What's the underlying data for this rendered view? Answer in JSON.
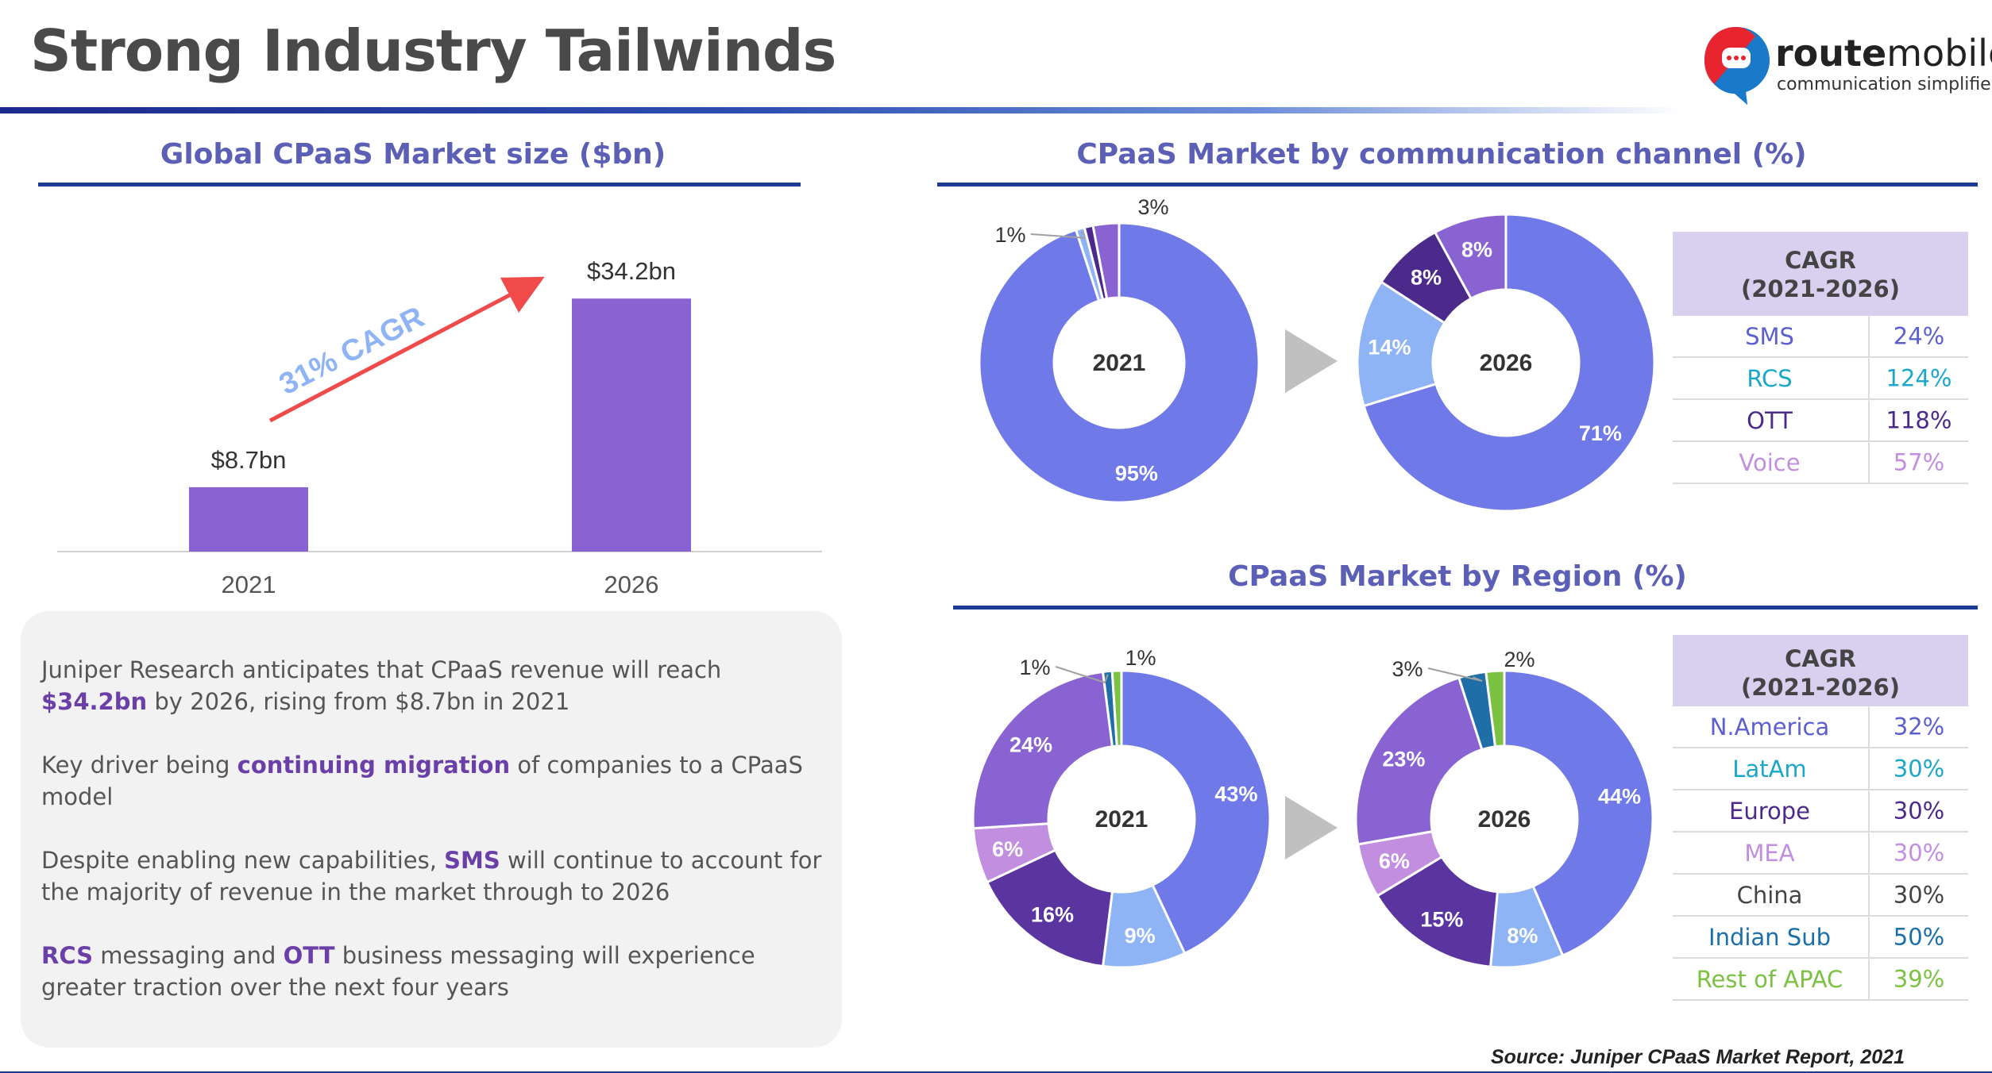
{
  "page_title": "Strong Industry Tailwinds",
  "logo": {
    "brand_bold": "route",
    "brand_regular": "mobile",
    "tagline": "communication simplified"
  },
  "source": "Source:  Juniper CPaaS Market Report, 2021",
  "market_size": {
    "section_title": "Global CPaaS Market size ($bn)",
    "cagr_label": "31% CAGR",
    "labels": [
      "$8.7bn",
      "$34.2bn"
    ]
  },
  "channel": {
    "section_title": "CPaaS Market by communication channel (%)",
    "center_labels": [
      "2021",
      "2026"
    ],
    "cagr_title_1": "CAGR",
    "cagr_title_2": "(2021-2026)",
    "cagr_rows": [
      {
        "name": "SMS",
        "value": "24%",
        "color": "#5b5fcf"
      },
      {
        "name": "RCS",
        "value": "124%",
        "color": "#1aa7c9"
      },
      {
        "name": "OTT",
        "value": "118%",
        "color": "#4b2a8c"
      },
      {
        "name": "Voice",
        "value": "57%",
        "color": "#c28ee0"
      }
    ]
  },
  "region": {
    "section_title": "CPaaS Market by Region (%)",
    "center_labels": [
      "2021",
      "2026"
    ],
    "cagr_title_1": "CAGR",
    "cagr_title_2": "(2021-2026)",
    "cagr_rows": [
      {
        "name": "N.America",
        "value": "32%",
        "color": "#5b5fcf"
      },
      {
        "name": "LatAm",
        "value": "30%",
        "color": "#1aa7c9"
      },
      {
        "name": "Europe",
        "value": "30%",
        "color": "#4b2a8c"
      },
      {
        "name": "MEA",
        "value": "30%",
        "color": "#c28ee0"
      },
      {
        "name": "China",
        "value": "30%",
        "color": "#444444"
      },
      {
        "name": "Indian Sub",
        "value": "50%",
        "color": "#1a6fa8"
      },
      {
        "name": "Rest of APAC",
        "value": "39%",
        "color": "#7cc242"
      }
    ]
  },
  "text": {
    "p1_a": "Juniper Research anticipates that CPaaS revenue will reach ",
    "p1_b": "$34.2bn",
    "p1_c": " by 2026, rising from $8.7bn in 2021",
    "p2_a": "Key driver being ",
    "p2_b": "continuing migration",
    "p2_c": " of companies to a CPaaS model",
    "p3_a": "Despite enabling new capabilities, ",
    "p3_b": "SMS",
    "p3_c": " will continue to account for the majority of revenue in the market through to 2026",
    "p4_a": "RCS",
    "p4_b": " messaging and ",
    "p4_c": "OTT",
    "p4_d": " business messaging will experience greater traction over the next four years"
  },
  "chart_data": [
    {
      "type": "bar",
      "title": "Global CPaaS Market size ($bn)",
      "categories": [
        "2021",
        "2026"
      ],
      "values": [
        8.7,
        34.2
      ],
      "ylim": [
        0,
        40
      ],
      "color": "#8a63d2"
    },
    {
      "type": "pie",
      "title": "CPaaS Market by communication channel (%)",
      "donut": "2021",
      "slices": [
        {
          "label": "SMS",
          "value": 95,
          "text": "95%",
          "color": "#6f79e8"
        },
        {
          "label": "RCS",
          "value": 1,
          "text": "1%",
          "color": "#8fb4f5"
        },
        {
          "label": "OTT",
          "value": 1,
          "text": "",
          "color": "#4b2a8c"
        },
        {
          "label": "Voice",
          "value": 3,
          "text": "3%",
          "color": "#8a63d2"
        }
      ]
    },
    {
      "type": "pie",
      "title": "CPaaS Market by communication channel (%)",
      "donut": "2026",
      "slices": [
        {
          "label": "SMS",
          "value": 71,
          "text": "71%",
          "color": "#6f79e8"
        },
        {
          "label": "RCS",
          "value": 14,
          "text": "14%",
          "color": "#8fb4f5"
        },
        {
          "label": "OTT",
          "value": 8,
          "text": "8%",
          "color": "#4b2a8c"
        },
        {
          "label": "Voice",
          "value": 8,
          "text": "8%",
          "color": "#8a63d2"
        }
      ]
    },
    {
      "type": "pie",
      "title": "CPaaS Market by Region (%)",
      "donut": "2021",
      "slices": [
        {
          "label": "N.America",
          "value": 43,
          "text": "43%",
          "color": "#6f79e8"
        },
        {
          "label": "LatAm",
          "value": 9,
          "text": "9%",
          "color": "#8fb4f5"
        },
        {
          "label": "Europe",
          "value": 16,
          "text": "16%",
          "color": "#5a35a0"
        },
        {
          "label": "MEA",
          "value": 6,
          "text": "6%",
          "color": "#c28ee0"
        },
        {
          "label": "China",
          "value": 24,
          "text": "24%",
          "color": "#8a63d2"
        },
        {
          "label": "Indian Sub",
          "value": 1,
          "text": "1%",
          "color": "#1f6ea8"
        },
        {
          "label": "Rest of APAC",
          "value": 1,
          "text": "1%",
          "color": "#7cc242"
        }
      ]
    },
    {
      "type": "pie",
      "title": "CPaaS Market by Region (%)",
      "donut": "2026",
      "slices": [
        {
          "label": "N.America",
          "value": 44,
          "text": "44%",
          "color": "#6f79e8"
        },
        {
          "label": "LatAm",
          "value": 8,
          "text": "8%",
          "color": "#8fb4f5"
        },
        {
          "label": "Europe",
          "value": 15,
          "text": "15%",
          "color": "#5a35a0"
        },
        {
          "label": "MEA",
          "value": 6,
          "text": "6%",
          "color": "#c28ee0"
        },
        {
          "label": "China",
          "value": 23,
          "text": "23%",
          "color": "#8a63d2"
        },
        {
          "label": "Indian Sub",
          "value": 3,
          "text": "3%",
          "color": "#1f6ea8"
        },
        {
          "label": "Rest of APAC",
          "value": 2,
          "text": "2%",
          "color": "#7cc242"
        }
      ]
    }
  ]
}
